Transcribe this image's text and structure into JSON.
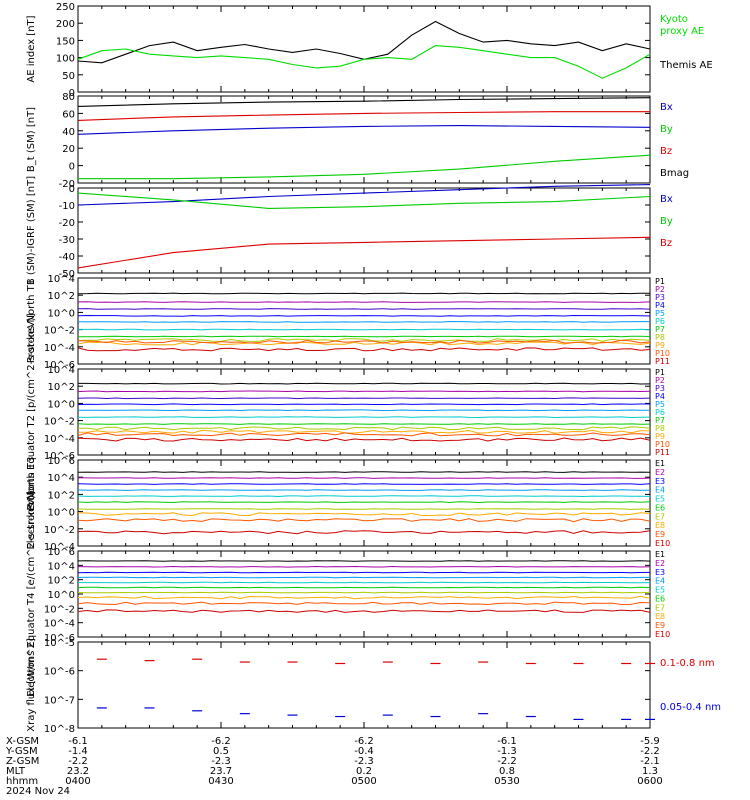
{
  "chart_data": [
    {
      "type": "line",
      "ylabel": "AE index [nT]",
      "ylim": [
        0,
        250
      ],
      "yticks": [
        "0",
        "50",
        "100",
        "150",
        "200",
        "250"
      ],
      "legend": [
        {
          "label": "Kyoto proxy AE",
          "color": "#00dd00"
        },
        {
          "label": "Themis AE",
          "color": "#000000"
        }
      ],
      "series": [
        {
          "name": "Themis AE",
          "color": "#000000",
          "t": [
            0,
            5,
            10,
            15,
            20,
            25,
            30,
            35,
            40,
            45,
            50,
            55,
            60,
            65,
            70,
            75,
            80,
            85,
            90,
            95,
            100,
            105,
            110,
            115,
            120
          ],
          "values": [
            90,
            85,
            110,
            135,
            145,
            120,
            130,
            138,
            125,
            115,
            125,
            112,
            95,
            110,
            165,
            205,
            170,
            145,
            150,
            140,
            135,
            145,
            120,
            140,
            125
          ]
        },
        {
          "name": "Kyoto proxy AE",
          "color": "#00dd00",
          "t": [
            0,
            5,
            10,
            15,
            20,
            25,
            30,
            35,
            40,
            45,
            50,
            55,
            60,
            65,
            70,
            75,
            80,
            85,
            90,
            95,
            100,
            105,
            110,
            115,
            120
          ],
          "values": [
            95,
            120,
            125,
            110,
            105,
            100,
            105,
            100,
            95,
            80,
            70,
            75,
            95,
            100,
            95,
            135,
            130,
            120,
            110,
            100,
            100,
            75,
            40,
            70,
            110
          ]
        }
      ]
    },
    {
      "type": "line",
      "ylabel": "B_t (SM) [nT]",
      "ylim": [
        -20,
        80
      ],
      "yticks": [
        "-20",
        "0",
        "20",
        "40",
        "60",
        "80"
      ],
      "legend": [
        {
          "label": "Bx",
          "color": "#0000cc"
        },
        {
          "label": "By",
          "color": "#00cc00"
        },
        {
          "label": "Bz",
          "color": "#dd0000"
        },
        {
          "label": "Bmag",
          "color": "#000000"
        }
      ],
      "series": [
        {
          "name": "Bmag",
          "color": "#000000",
          "t": [
            0,
            20,
            40,
            60,
            80,
            100,
            120
          ],
          "values": [
            68,
            71,
            73,
            74,
            76,
            77,
            78
          ]
        },
        {
          "name": "Bz",
          "color": "#dd0000",
          "t": [
            0,
            20,
            40,
            60,
            80,
            100,
            120
          ],
          "values": [
            52,
            56,
            58,
            60,
            61,
            62,
            62
          ]
        },
        {
          "name": "Bx",
          "color": "#0000cc",
          "t": [
            0,
            20,
            40,
            60,
            80,
            100,
            120
          ],
          "values": [
            36,
            40,
            43,
            45,
            46,
            45,
            44
          ]
        },
        {
          "name": "By",
          "color": "#00cc00",
          "t": [
            0,
            20,
            40,
            60,
            80,
            100,
            120
          ],
          "values": [
            -15,
            -15,
            -13,
            -10,
            -4,
            5,
            12
          ]
        }
      ]
    },
    {
      "type": "line",
      "ylabel": "B (SM)-IGRF (SM) [nT]",
      "ylim": [
        -50,
        0
      ],
      "yticks": [
        "-50",
        "-40",
        "-30",
        "-20",
        "-10",
        "0"
      ],
      "legend": [
        {
          "label": "Bx",
          "color": "#0000cc"
        },
        {
          "label": "By",
          "color": "#00cc00"
        },
        {
          "label": "Bz",
          "color": "#dd0000"
        }
      ],
      "series": [
        {
          "name": "Bx",
          "color": "#0000cc",
          "t": [
            0,
            20,
            40,
            60,
            80,
            100,
            120
          ],
          "values": [
            -10,
            -8,
            -5,
            -3,
            -1,
            1,
            2
          ]
        },
        {
          "name": "By",
          "color": "#00cc00",
          "t": [
            0,
            20,
            40,
            60,
            80,
            100,
            120
          ],
          "values": [
            -3,
            -7,
            -12,
            -11,
            -9,
            -8,
            -5
          ]
        },
        {
          "name": "Bz",
          "color": "#dd0000",
          "t": [
            0,
            20,
            40,
            60,
            80,
            100,
            120
          ],
          "values": [
            -47,
            -38,
            -33,
            -32,
            -31,
            -30,
            -29
          ]
        }
      ]
    },
    {
      "type": "line",
      "ylabel": "Protons North T1",
      "yscale": "log",
      "ylim": [
        -6,
        4
      ],
      "yticks": [
        "10^-6",
        "10^-4",
        "10^-2",
        "10^0",
        "10^2",
        "10^4"
      ],
      "channels": [
        "P1",
        "P2",
        "P3",
        "P4",
        "P5",
        "P6",
        "P7",
        "P8",
        "P9",
        "P10",
        "P11"
      ],
      "colors": [
        "#000000",
        "#aa00aa",
        "#4400cc",
        "#0000ff",
        "#0099ff",
        "#00cccc",
        "#00cc00",
        "#aacc00",
        "#ffaa00",
        "#ff5500",
        "#cc0000"
      ],
      "levels": [
        2.2,
        1.2,
        0.4,
        -0.4,
        -1.1,
        -2.0,
        -2.8,
        -3.2,
        -3.6,
        -3.4,
        -4.3
      ]
    },
    {
      "type": "line",
      "ylabel": "Protons Equator T2 [p/(cm^2-s-sr-keV)]",
      "yscale": "log",
      "ylim": [
        -6,
        4
      ],
      "yticks": [
        "10^-6",
        "10^-4",
        "10^-2",
        "10^0",
        "10^2",
        "10^4"
      ],
      "channels": [
        "P1",
        "P2",
        "P3",
        "P4",
        "P5",
        "P6",
        "P7",
        "P8",
        "P9",
        "P10",
        "P11"
      ],
      "colors": [
        "#000000",
        "#aa00aa",
        "#4400cc",
        "#0000ff",
        "#0099ff",
        "#00cccc",
        "#00cc00",
        "#aacc00",
        "#ffaa00",
        "#ff5500",
        "#cc0000"
      ],
      "levels": [
        2.3,
        1.4,
        0.6,
        -0.1,
        -0.8,
        -1.6,
        -2.4,
        -2.9,
        -3.3,
        -3.6,
        -4.2
      ]
    },
    {
      "type": "line",
      "ylabel": "Electrons North T3",
      "yscale": "log",
      "ylim": [
        -4,
        6
      ],
      "yticks": [
        "10^-4",
        "10^-2",
        "10^0",
        "10^2",
        "10^4",
        "10^6"
      ],
      "channels": [
        "E1",
        "E2",
        "E3",
        "E4",
        "E5",
        "E6",
        "E7",
        "E8",
        "E9",
        "E10"
      ],
      "colors": [
        "#000000",
        "#aa00aa",
        "#0000ff",
        "#0099ff",
        "#00cccc",
        "#00cc00",
        "#aacc00",
        "#ffaa00",
        "#ff5500",
        "#cc0000"
      ],
      "levels": [
        4.6,
        3.9,
        3.2,
        2.5,
        1.8,
        1.1,
        0.3,
        -0.3,
        -1.0,
        -2.4
      ]
    },
    {
      "type": "line",
      "ylabel": "Electrons Equator T4 [e/(cm^2-s-sr-keV)]",
      "yscale": "log",
      "ylim": [
        -6,
        6
      ],
      "yticks": [
        "10^-6",
        "10^-4",
        "10^-2",
        "10^0",
        "10^2",
        "10^4",
        "10^6"
      ],
      "channels": [
        "E1",
        "E2",
        "E3",
        "E4",
        "E5",
        "E6",
        "E7",
        "E8",
        "E9",
        "E10"
      ],
      "colors": [
        "#000000",
        "#aa00aa",
        "#0000ff",
        "#0099ff",
        "#00cccc",
        "#00cc00",
        "#aacc00",
        "#ffaa00",
        "#ff5500",
        "#cc0000"
      ],
      "levels": [
        4.6,
        3.8,
        3.0,
        2.3,
        1.6,
        0.9,
        0.2,
        -0.5,
        -1.3,
        -2.4
      ]
    },
    {
      "type": "scatter",
      "ylabel": "Xray flux [W/m^2]",
      "yscale": "log",
      "ylim": [
        -8,
        -5
      ],
      "yticks": [
        "10^-8",
        "10^-7",
        "10^-6",
        "10^-5"
      ],
      "legend": [
        {
          "label": "0.1-0.8 nm",
          "color": "#dd0000"
        },
        {
          "label": "0.05-0.4 nm",
          "color": "#0000dd"
        }
      ],
      "series": [
        {
          "name": "0.1-0.8 nm",
          "color": "#dd0000",
          "t": [
            5,
            15,
            25,
            35,
            45,
            55,
            65,
            75,
            85,
            95,
            105,
            115,
            124
          ],
          "values": [
            -5.6,
            -5.65,
            -5.6,
            -5.7,
            -5.7,
            -5.75,
            -5.7,
            -5.75,
            -5.7,
            -5.75,
            -5.75,
            -5.75,
            -5.75
          ]
        },
        {
          "name": "0.05-0.4 nm",
          "color": "#0000dd",
          "t": [
            5,
            15,
            25,
            35,
            45,
            55,
            65,
            75,
            85,
            95,
            105,
            115,
            124
          ],
          "values": [
            -7.3,
            -7.3,
            -7.4,
            -7.5,
            -7.55,
            -7.6,
            -7.55,
            -7.6,
            -7.5,
            -7.6,
            -7.7,
            -7.7,
            -7.7
          ]
        }
      ]
    }
  ],
  "footer": {
    "rows": [
      {
        "label": "X-GSM",
        "values": [
          "-6.1",
          "-6.2",
          "-6.2",
          "-6.1",
          "-5.9"
        ]
      },
      {
        "label": "Y-GSM",
        "values": [
          "-1.4",
          "0.5",
          "-0.4",
          "-1.3",
          "-2.2"
        ]
      },
      {
        "label": "Z-GSM",
        "values": [
          "-2.2",
          "-2.3",
          "-2.3",
          "-2.2",
          "-2.1"
        ]
      },
      {
        "label": "MLT",
        "values": [
          "23.2",
          "23.7",
          "0.2",
          "0.8",
          "1.3"
        ]
      },
      {
        "label": "hhmm",
        "values": [
          "0400",
          "0430",
          "0500",
          "0530",
          "0600"
        ]
      }
    ],
    "date": "2024 Nov 24"
  }
}
